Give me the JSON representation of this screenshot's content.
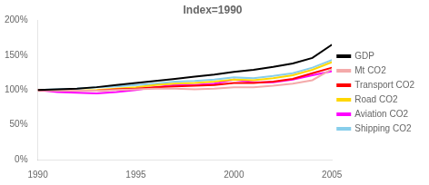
{
  "chart_data": {
    "type": "line",
    "title": "Index=1990",
    "x": [
      1990,
      1991,
      1992,
      1993,
      1994,
      1995,
      1996,
      1997,
      1998,
      1999,
      2000,
      2001,
      2002,
      2003,
      2004,
      2005
    ],
    "series": [
      {
        "name": "GDP",
        "color": "#000000",
        "values": [
          100,
          101,
          102,
          104,
          107,
          110,
          113,
          116,
          119,
          122,
          126,
          129,
          133,
          138,
          146,
          165
        ]
      },
      {
        "name": "Mt CO2",
        "color": "#F4AAAA",
        "values": [
          100,
          99,
          99,
          99,
          100,
          101,
          102,
          102,
          101,
          102,
          104,
          104,
          106,
          109,
          114,
          130
        ]
      },
      {
        "name": "Transport CO2",
        "color": "#FF0000",
        "values": [
          100,
          100,
          99,
          99,
          101,
          102,
          104,
          105,
          106,
          107,
          110,
          110,
          112,
          116,
          124,
          132
        ]
      },
      {
        "name": "Road CO2",
        "color": "#FFD700",
        "values": [
          100,
          100,
          99,
          100,
          102,
          104,
          107,
          109,
          110,
          112,
          115,
          114,
          117,
          121,
          129,
          140
        ]
      },
      {
        "name": "Aviation CO2",
        "color": "#FF00FF",
        "values": [
          100,
          97,
          96,
          95,
          97,
          100,
          104,
          107,
          107,
          109,
          115,
          111,
          111,
          115,
          121,
          127
        ]
      },
      {
        "name": "Shipping CO2",
        "color": "#87CEEB",
        "values": [
          100,
          101,
          102,
          104,
          105,
          107,
          109,
          112,
          113,
          115,
          118,
          117,
          120,
          124,
          132,
          143
        ]
      }
    ],
    "xlim": [
      1990,
      2005
    ],
    "xticks": [
      1990,
      1995,
      2000,
      2005
    ],
    "ylim": [
      0,
      200
    ],
    "yticks": [
      {
        "value": 0,
        "label": "0%"
      },
      {
        "value": 50,
        "label": "50%"
      },
      {
        "value": 100,
        "label": "100%"
      },
      {
        "value": 150,
        "label": "150%"
      },
      {
        "value": 200,
        "label": "200%"
      }
    ],
    "grid": false,
    "legend": "right"
  }
}
